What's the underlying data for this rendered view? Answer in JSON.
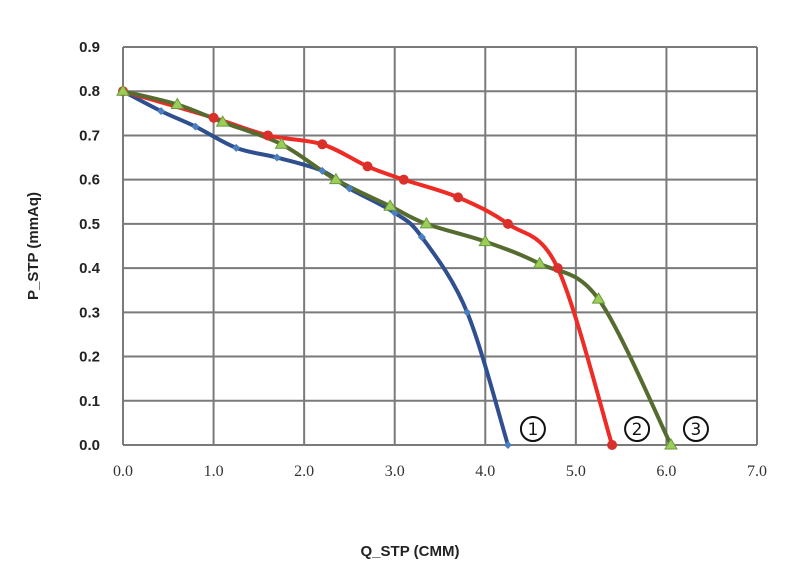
{
  "chart_data": {
    "type": "line",
    "title": "",
    "xlabel": "Q_STP (CMM)",
    "ylabel": "P_STP (mmAq)",
    "xlim": [
      0,
      7
    ],
    "ylim": [
      0,
      0.9
    ],
    "grid": true,
    "xticks": [
      "0.0",
      "1.0",
      "2.0",
      "3.0",
      "4.0",
      "5.0",
      "6.0",
      "7.0"
    ],
    "yticks": [
      "0.0",
      "0.1",
      "0.2",
      "0.3",
      "0.4",
      "0.5",
      "0.6",
      "0.7",
      "0.8",
      "0.9"
    ],
    "series": [
      {
        "name": "①",
        "color": "#2f4f8f",
        "marker": "diamond",
        "x": [
          0,
          0.42,
          0.8,
          1.25,
          1.7,
          2.2,
          2.5,
          3.0,
          3.3,
          3.8,
          4.25
        ],
        "y": [
          0.8,
          0.755,
          0.72,
          0.672,
          0.65,
          0.62,
          0.58,
          0.525,
          0.47,
          0.3,
          0.0
        ]
      },
      {
        "name": "②",
        "color": "#ee2b24",
        "marker": "circle",
        "x": [
          0,
          1.0,
          1.6,
          2.2,
          2.7,
          3.1,
          3.7,
          4.25,
          4.8,
          5.4
        ],
        "y": [
          0.8,
          0.74,
          0.7,
          0.68,
          0.63,
          0.6,
          0.56,
          0.5,
          0.4,
          0.0
        ]
      },
      {
        "name": "③",
        "color": "#556b2f",
        "marker": "triangle",
        "x": [
          0,
          0.6,
          1.1,
          1.75,
          2.35,
          2.95,
          3.35,
          4.0,
          4.6,
          5.25,
          6.05
        ],
        "y": [
          0.8,
          0.77,
          0.73,
          0.68,
          0.6,
          0.54,
          0.5,
          0.46,
          0.41,
          0.33,
          0.0
        ]
      }
    ]
  }
}
